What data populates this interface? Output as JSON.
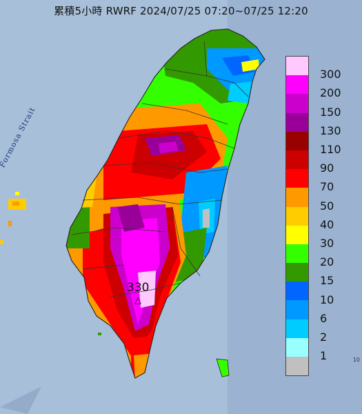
{
  "title": "累積5小時 RWRF 2024/07/25 07:20~07/25 12:20",
  "sea_label": "Formosa Strait",
  "peak": {
    "value": "330",
    "marker": "△"
  },
  "edge_tag": "10",
  "legend": {
    "unit": "",
    "levels": [
      {
        "label": "300",
        "color": "#ffc8ff"
      },
      {
        "label": "200",
        "color": "#ff00ff"
      },
      {
        "label": "150",
        "color": "#cc00cc"
      },
      {
        "label": "130",
        "color": "#990099"
      },
      {
        "label": "110",
        "color": "#990000"
      },
      {
        "label": "90",
        "color": "#cc0000"
      },
      {
        "label": "70",
        "color": "#ff0000"
      },
      {
        "label": "50",
        "color": "#ff9900"
      },
      {
        "label": "40",
        "color": "#ffcc00"
      },
      {
        "label": "30",
        "color": "#ffff00"
      },
      {
        "label": "20",
        "color": "#33ff00"
      },
      {
        "label": "15",
        "color": "#339900"
      },
      {
        "label": "10",
        "color": "#0066ff"
      },
      {
        "label": "6",
        "color": "#0099ff"
      },
      {
        "label": "2",
        "color": "#00ccff"
      },
      {
        "label": "1",
        "color": "#99ffff"
      },
      {
        "label": "",
        "color": "#c0c0c0"
      }
    ]
  }
}
